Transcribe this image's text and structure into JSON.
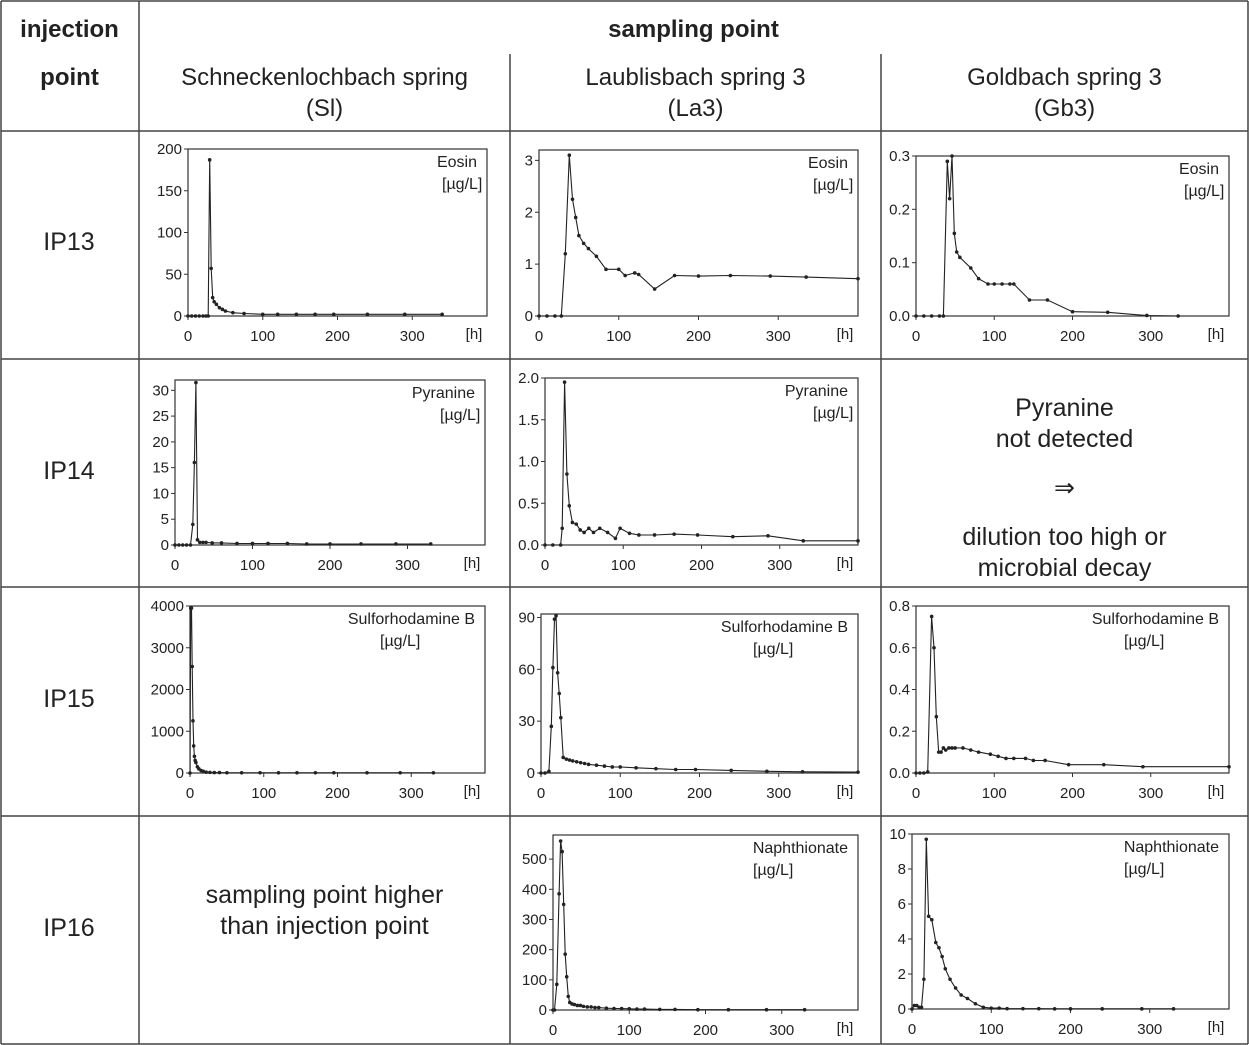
{
  "header": {
    "injection_line1": "injection",
    "injection_line2": "point",
    "sampling_title": "sampling point",
    "columns": [
      {
        "name": "Schneckenlochbach spring",
        "code": "(Sl)"
      },
      {
        "name": "Laublisbach spring 3",
        "code": "(La3)"
      },
      {
        "name": "Goldbach spring 3",
        "code": "(Gb3)"
      }
    ]
  },
  "rows": [
    "IP13",
    "IP14",
    "IP15",
    "IP16"
  ],
  "notes": {
    "ip14_gb3": {
      "line1": "Pyranine",
      "line2": "not detected",
      "arrow": "⇒",
      "line3": "dilution too high or",
      "line4": "microbial decay"
    },
    "ip16_sl": {
      "line1": "sampling point higher",
      "line2": "than injection point"
    }
  },
  "style": {
    "line_color": "#222222",
    "grid_color": "#333333"
  },
  "chart_data": [
    {
      "id": "ip13-sl",
      "type": "line",
      "row": "IP13",
      "column": "Sl",
      "title": "Eosin",
      "unit": "[µg/L]",
      "xlabel": "[h]",
      "xlim": [
        0,
        400
      ],
      "ylim": [
        0,
        200
      ],
      "xticks": [
        0,
        100,
        200,
        300
      ],
      "yticks": [
        0,
        50,
        100,
        150,
        200
      ],
      "x": [
        0,
        5,
        10,
        15,
        20,
        24,
        27,
        29,
        31,
        33,
        35,
        38,
        42,
        46,
        50,
        60,
        75,
        100,
        120,
        145,
        170,
        195,
        240,
        290,
        340
      ],
      "y": [
        0,
        0,
        0,
        0,
        0,
        0,
        0,
        187,
        57,
        22,
        17,
        14,
        10,
        8,
        6,
        4,
        3,
        2,
        2,
        2,
        2,
        2,
        2,
        2,
        2
      ]
    },
    {
      "id": "ip13-la3",
      "type": "line",
      "row": "IP13",
      "column": "La3",
      "title": "Eosin",
      "unit": "[µg/L]",
      "xlabel": "[h]",
      "xlim": [
        0,
        400
      ],
      "ylim": [
        0,
        3.2
      ],
      "xticks": [
        0,
        100,
        200,
        300
      ],
      "yticks": [
        0,
        1,
        2,
        3
      ],
      "x": [
        0,
        10,
        20,
        28,
        33,
        38,
        42,
        46,
        50,
        56,
        62,
        72,
        84,
        100,
        108,
        120,
        125,
        145,
        170,
        200,
        240,
        290,
        335,
        400
      ],
      "y": [
        0,
        0,
        0,
        0,
        1.2,
        3.1,
        2.25,
        1.9,
        1.55,
        1.4,
        1.3,
        1.15,
        0.9,
        0.9,
        0.78,
        0.83,
        0.8,
        0.52,
        0.78,
        0.77,
        0.78,
        0.77,
        0.75,
        0.72
      ]
    },
    {
      "id": "ip13-gb3",
      "type": "line",
      "row": "IP13",
      "column": "Gb3",
      "title": "Eosin",
      "unit": "[µg/L]",
      "xlabel": "[h]",
      "xlim": [
        0,
        400
      ],
      "ylim": [
        0,
        0.3
      ],
      "xticks": [
        0,
        100,
        200,
        300
      ],
      "yticks": [
        0.0,
        0.1,
        0.2,
        0.3
      ],
      "x": [
        0,
        10,
        20,
        30,
        35,
        40,
        43,
        46,
        49,
        52,
        56,
        70,
        80,
        92,
        100,
        110,
        120,
        125,
        145,
        168,
        200,
        245,
        295,
        335
      ],
      "y": [
        0,
        0,
        0,
        0,
        0,
        0.29,
        0.22,
        0.3,
        0.155,
        0.12,
        0.11,
        0.09,
        0.07,
        0.06,
        0.06,
        0.06,
        0.06,
        0.06,
        0.03,
        0.03,
        0.008,
        0.007,
        0.001,
        0.0
      ]
    },
    {
      "id": "ip14-sl",
      "type": "line",
      "row": "IP14",
      "column": "Sl",
      "title": "Pyranine",
      "unit": "[µg/L]",
      "xlabel": "[h]",
      "xlim": [
        0,
        400
      ],
      "ylim": [
        0,
        32
      ],
      "xticks": [
        0,
        100,
        200,
        300
      ],
      "yticks": [
        0,
        5,
        10,
        15,
        20,
        25,
        30
      ],
      "x": [
        0,
        5,
        10,
        15,
        20,
        23,
        25,
        27,
        29,
        32,
        36,
        40,
        48,
        60,
        80,
        100,
        120,
        145,
        170,
        200,
        240,
        285,
        330
      ],
      "y": [
        0,
        0,
        0,
        0,
        0,
        4,
        16,
        31.5,
        1,
        0.5,
        0.5,
        0.5,
        0.4,
        0.4,
        0.3,
        0.3,
        0.3,
        0.3,
        0.2,
        0.2,
        0.2,
        0.2,
        0.2
      ]
    },
    {
      "id": "ip14-la3",
      "type": "line",
      "row": "IP14",
      "column": "La3",
      "title": "Pyranine",
      "unit": "[µg/L]",
      "xlabel": "[h]",
      "xlim": [
        0,
        400
      ],
      "ylim": [
        0,
        2.0
      ],
      "xticks": [
        0,
        100,
        200,
        300
      ],
      "yticks": [
        0.0,
        0.5,
        1.0,
        1.5,
        2.0
      ],
      "x": [
        0,
        10,
        20,
        22,
        25,
        28,
        31,
        35,
        40,
        45,
        50,
        56,
        62,
        70,
        80,
        90,
        96,
        108,
        120,
        140,
        165,
        195,
        240,
        285,
        330,
        400
      ],
      "y": [
        0,
        0,
        0,
        0.2,
        1.95,
        0.85,
        0.47,
        0.27,
        0.25,
        0.18,
        0.15,
        0.2,
        0.15,
        0.2,
        0.15,
        0.08,
        0.2,
        0.14,
        0.12,
        0.12,
        0.13,
        0.12,
        0.1,
        0.11,
        0.05,
        0.05
      ]
    },
    {
      "id": "ip15-sl",
      "type": "line",
      "row": "IP15",
      "column": "Sl",
      "title": "Sulforhodamine B",
      "unit": "[µg/L]",
      "xlabel": "[h]",
      "xlim": [
        0,
        400
      ],
      "ylim": [
        0,
        4000
      ],
      "xticks": [
        0,
        100,
        200,
        300
      ],
      "yticks": [
        0,
        1000,
        2000,
        3000,
        4000
      ],
      "x": [
        0,
        1,
        2,
        3,
        4,
        5,
        6,
        7,
        8,
        10,
        12,
        15,
        18,
        22,
        27,
        33,
        40,
        50,
        70,
        95,
        120,
        145,
        170,
        195,
        240,
        285,
        330
      ],
      "y": [
        0,
        3950,
        3950,
        2550,
        1250,
        650,
        400,
        300,
        250,
        150,
        100,
        60,
        40,
        20,
        15,
        10,
        10,
        5,
        5,
        5,
        5,
        5,
        5,
        5,
        5,
        5,
        5
      ]
    },
    {
      "id": "ip15-la3",
      "type": "line",
      "row": "IP15",
      "column": "La3",
      "title": "Sulforhodamine B",
      "unit": "[µg/L]",
      "xlabel": "[h]",
      "xlim": [
        0,
        400
      ],
      "ylim": [
        0,
        92
      ],
      "xticks": [
        0,
        100,
        200,
        300
      ],
      "yticks": [
        0,
        30,
        60,
        90
      ],
      "x": [
        0,
        5,
        10,
        13,
        15,
        17,
        19,
        21,
        23,
        25,
        28,
        32,
        36,
        40,
        45,
        50,
        55,
        60,
        70,
        80,
        90,
        100,
        120,
        145,
        170,
        195,
        240,
        285,
        330,
        400
      ],
      "y": [
        0,
        0,
        1,
        27,
        61,
        89,
        91,
        58,
        46,
        32,
        9,
        8,
        7.5,
        7,
        6.5,
        6,
        5.5,
        5,
        4.5,
        4,
        3.5,
        3.5,
        3,
        2.5,
        2,
        2,
        1.5,
        1,
        0.7,
        0.5
      ]
    },
    {
      "id": "ip15-gb3",
      "type": "line",
      "row": "IP15",
      "column": "Gb3",
      "title": "Sulforhodamine B",
      "unit": "[µg/L]",
      "xlabel": "[h]",
      "xlim": [
        0,
        400
      ],
      "ylim": [
        0,
        0.8
      ],
      "xticks": [
        0,
        100,
        200,
        300
      ],
      "yticks": [
        0.0,
        0.2,
        0.4,
        0.6,
        0.8
      ],
      "x": [
        0,
        5,
        10,
        15,
        20,
        23,
        26,
        29,
        32,
        35,
        38,
        42,
        46,
        50,
        60,
        70,
        80,
        95,
        105,
        115,
        125,
        140,
        150,
        165,
        195,
        240,
        290,
        400
      ],
      "y": [
        0,
        0,
        0,
        0.005,
        0.75,
        0.6,
        0.27,
        0.1,
        0.1,
        0.12,
        0.11,
        0.12,
        0.12,
        0.12,
        0.12,
        0.11,
        0.1,
        0.09,
        0.08,
        0.07,
        0.07,
        0.07,
        0.06,
        0.06,
        0.04,
        0.04,
        0.03,
        0.03
      ]
    },
    {
      "id": "ip16-la3",
      "type": "line",
      "row": "IP16",
      "column": "La3",
      "title": "Naphthionate",
      "unit": "[µg/L]",
      "xlabel": "[h]",
      "xlim": [
        0,
        400
      ],
      "ylim": [
        0,
        580
      ],
      "xticks": [
        0,
        100,
        200,
        300
      ],
      "yticks": [
        0,
        100,
        200,
        300,
        400,
        500
      ],
      "x": [
        0,
        2,
        5,
        8,
        10,
        12,
        14,
        16,
        18,
        20,
        22,
        25,
        28,
        32,
        36,
        40,
        45,
        50,
        55,
        60,
        70,
        80,
        90,
        100,
        110,
        120,
        140,
        160,
        190,
        230,
        280,
        330
      ],
      "y": [
        0,
        0,
        85,
        385,
        560,
        525,
        350,
        185,
        110,
        45,
        25,
        20,
        18,
        15,
        15,
        12,
        10,
        10,
        8,
        8,
        6,
        5,
        5,
        4,
        3,
        3,
        2,
        2,
        1,
        1,
        1,
        1
      ]
    },
    {
      "id": "ip16-gb3",
      "type": "line",
      "row": "IP16",
      "column": "Gb3",
      "title": "Naphthionate",
      "unit": "[µg/L]",
      "xlabel": "[h]",
      "xlim": [
        0,
        400
      ],
      "ylim": [
        0,
        10
      ],
      "xticks": [
        0,
        100,
        200,
        300
      ],
      "yticks": [
        0,
        2,
        4,
        6,
        8,
        10
      ],
      "x": [
        0,
        3,
        6,
        9,
        12,
        15,
        18,
        21,
        25,
        30,
        34,
        38,
        42,
        48,
        55,
        62,
        70,
        80,
        90,
        100,
        110,
        120,
        140,
        160,
        180,
        200,
        240,
        290,
        330
      ],
      "y": [
        0,
        0.2,
        0.2,
        0.1,
        0.1,
        1.7,
        9.7,
        5.3,
        5.1,
        3.8,
        3.5,
        3.0,
        2.3,
        1.7,
        1.2,
        0.8,
        0.6,
        0.3,
        0.1,
        0.05,
        0.05,
        0.02,
        0.02,
        0.02,
        0.01,
        0.01,
        0.01,
        0.01,
        0.01
      ]
    }
  ]
}
